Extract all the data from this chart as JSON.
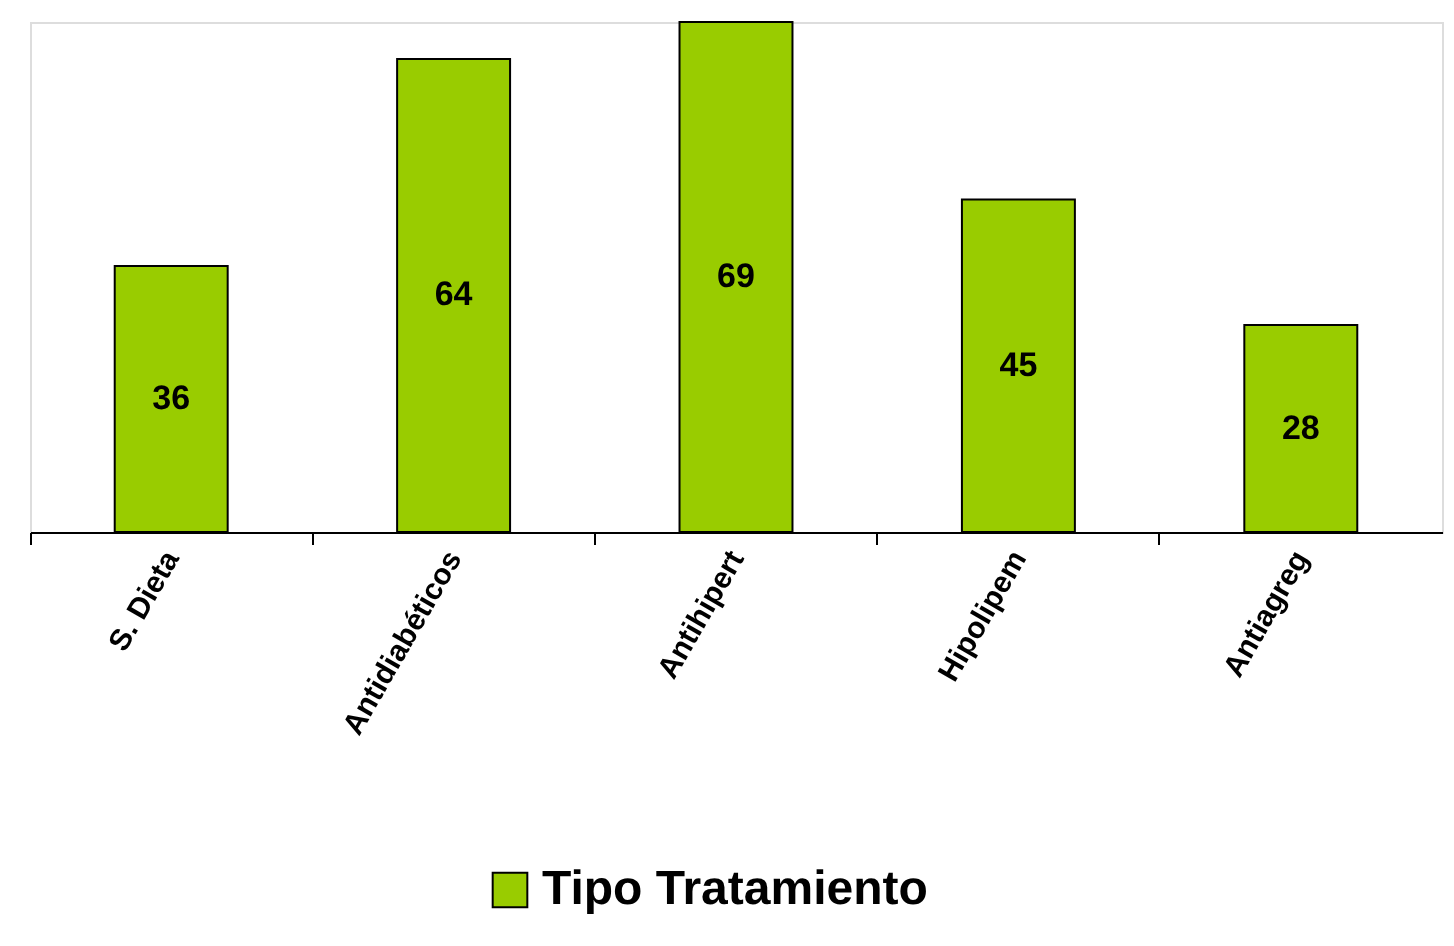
{
  "chart_data": {
    "type": "bar",
    "categories": [
      "S. Dieta",
      "Antidiabéticos",
      "Antihipert",
      "Hipolipem",
      "Antiagreg"
    ],
    "series": [
      {
        "name": "Tipo Tratamiento",
        "color": "#99cc00",
        "values": [
          36,
          64,
          69,
          45,
          28
        ]
      }
    ],
    "data_labels": true,
    "legend": "bottom",
    "grid": false
  }
}
